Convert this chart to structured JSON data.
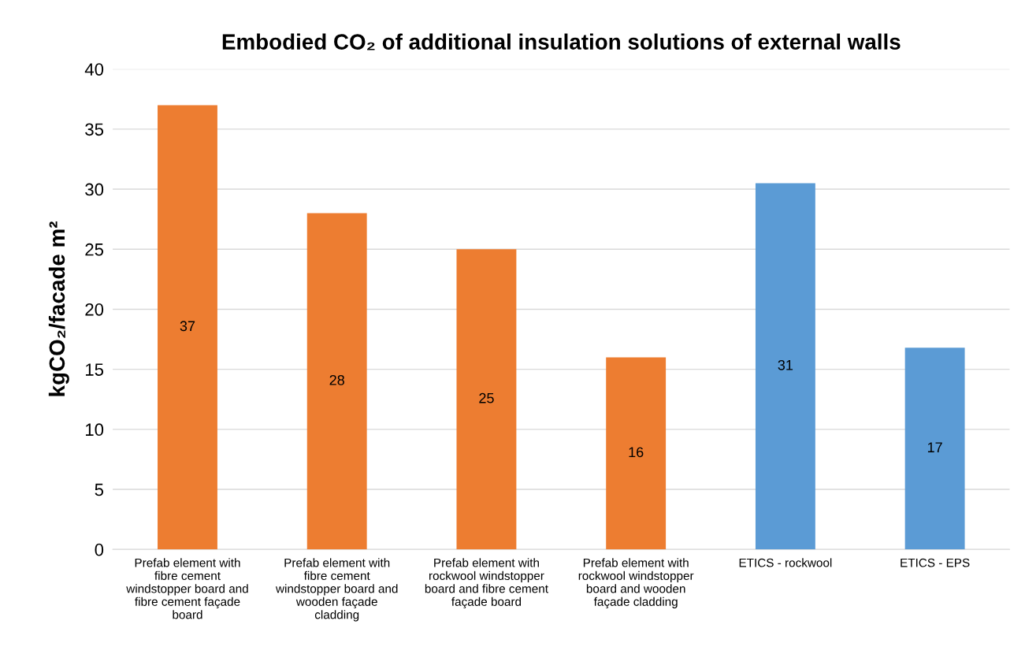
{
  "chart_data": {
    "type": "bar",
    "title": "Embodied CO₂ of additional insulation solutions of external walls",
    "ylabel": "kgCO₂/facade m²",
    "categories": [
      "Prefab element with\nfibre cement\nwindstopper board and\nfibre cement façade\nboard",
      "Prefab element with\nfibre cement\nwindstopper board and\nwooden façade\ncladding",
      "Prefab element with\nrockwool windstopper\nboard and fibre cement\nfaçade board",
      "Prefab element with\nrockwool windstopper\nboard and wooden\nfaçade cladding",
      "ETICS - rockwool",
      "ETICS - EPS"
    ],
    "values": [
      37,
      28,
      25,
      16,
      30.5,
      16.8
    ],
    "colors": [
      "#ed7d31",
      "#ed7d31",
      "#ed7d31",
      "#ed7d31",
      "#5b9bd5",
      "#5b9bd5"
    ],
    "value_labels": [
      "37",
      "28",
      "25",
      "16",
      "31",
      "17"
    ],
    "ylim": [
      0,
      40
    ],
    "yticks": [
      0,
      5,
      10,
      15,
      20,
      25,
      30,
      35,
      40
    ],
    "grid": "y"
  }
}
